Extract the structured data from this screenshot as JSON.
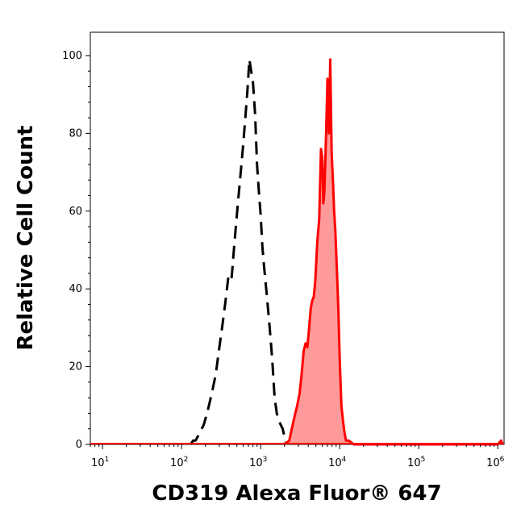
{
  "chart_data": {
    "type": "area",
    "xlabel": "CD319 Alexa Fluor® 647",
    "ylabel": "Relative Cell Count",
    "x_scale": "log",
    "xlim": [
      7,
      1200000
    ],
    "ylim": [
      0,
      106
    ],
    "x_ticks": [
      {
        "base": "10",
        "exp": "1",
        "value": 10
      },
      {
        "base": "10",
        "exp": "2",
        "value": 100
      },
      {
        "base": "10",
        "exp": "3",
        "value": 1000
      },
      {
        "base": "10",
        "exp": "4",
        "value": 10000
      },
      {
        "base": "10",
        "exp": "5",
        "value": 100000
      },
      {
        "base": "10",
        "exp": "6",
        "value": 1000000
      }
    ],
    "y_ticks": [
      0,
      20,
      40,
      60,
      80,
      100
    ],
    "grid": false,
    "series": [
      {
        "style": "dashed-black-line",
        "color": "#000000",
        "x": [
          130,
          140,
          150,
          170,
          190,
          210,
          240,
          270,
          300,
          330,
          360,
          390,
          410,
          430,
          450,
          480,
          520,
          560,
          600,
          640,
          680,
          720,
          760,
          800,
          850,
          900,
          950,
          1000,
          1050,
          1100,
          1200,
          1300,
          1400,
          1500,
          1600,
          1700,
          1800,
          1900,
          2000,
          2100
        ],
        "y": [
          0,
          1,
          1,
          3,
          5,
          8,
          13,
          18,
          25,
          31,
          37,
          43,
          44,
          43,
          48,
          55,
          63,
          70,
          77,
          84,
          91,
          99,
          96,
          93,
          85,
          72,
          65,
          59,
          51,
          46,
          38,
          30,
          22,
          12,
          8,
          6,
          5,
          4,
          2,
          0
        ]
      },
      {
        "style": "filled-red-area",
        "color": "#ff0000",
        "fill": "#ff9a9a",
        "x": [
          2000,
          2300,
          2600,
          2900,
          3100,
          3300,
          3500,
          3700,
          3900,
          4100,
          4300,
          4500,
          4700,
          4900,
          5200,
          5500,
          5800,
          6000,
          6200,
          6400,
          6700,
          7000,
          7300,
          7600,
          7900,
          8200,
          8500,
          8800,
          9200,
          9600,
          10000,
          10500,
          11000,
          11500,
          12000,
          13000,
          14000,
          15000,
          17000,
          20000,
          40000,
          100000,
          300000,
          1000000,
          1100000,
          1150000
        ],
        "y": [
          0,
          1,
          6,
          10,
          13,
          18,
          24,
          26,
          25,
          30,
          35,
          37,
          38,
          42,
          52,
          58,
          76,
          74,
          62,
          65,
          79,
          94,
          80,
          99,
          75,
          68,
          60,
          55,
          45,
          35,
          22,
          10,
          6,
          3,
          1,
          1,
          0.5,
          0,
          0,
          0,
          0,
          0,
          0,
          0,
          1,
          0
        ]
      }
    ]
  }
}
